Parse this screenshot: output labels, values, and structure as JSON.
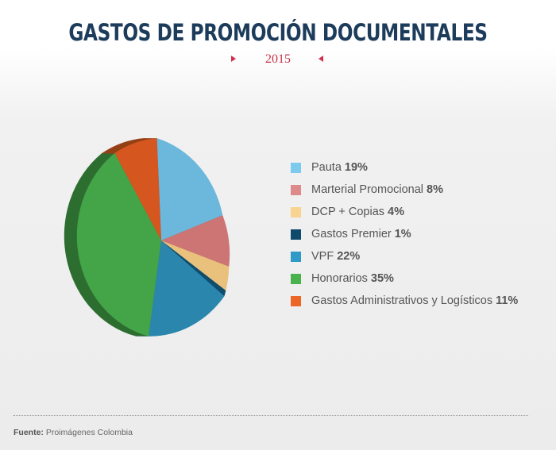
{
  "header": {
    "title": "GASTOS DE PROMOCIÓN DOCUMENTALES",
    "subtitle": "2015"
  },
  "chart_data": {
    "type": "pie",
    "title": "GASTOS DE PROMOCIÓN DOCUMENTALES",
    "subtitle": "2015",
    "legend_position": "right",
    "slices": [
      {
        "label": "Pauta",
        "value_text": "19%",
        "value": 19,
        "color": "#6cb7dc",
        "side": "#3f7f9f"
      },
      {
        "label": "Marterial Promocional",
        "value_text": "8%",
        "value": 8,
        "color": "#cd7475",
        "side": "#8e4a4c"
      },
      {
        "label": "DCP + Copias",
        "value_text": "4%",
        "value": 4,
        "color": "#e9c17c",
        "side": "#a98a55"
      },
      {
        "label": "Gastos Premier",
        "value_text": "1%",
        "value": 1,
        "color": "#104c6c",
        "side": "#0a3550"
      },
      {
        "label": "VPF",
        "value_text": "22%",
        "value": 22,
        "color": "#2a86ad",
        "side": "#1b5a76"
      },
      {
        "label": "Honorarios",
        "value_text": "35%",
        "value": 35,
        "color": "#44a548",
        "side": "#2d6e30"
      },
      {
        "label": "Gastos Administrativos y Logísticos",
        "value_text": "11%",
        "value": 11,
        "color": "#d5561f",
        "side": "#944016"
      }
    ],
    "legend_colors": [
      "#7ccbee",
      "#de8a8a",
      "#f7d48f",
      "#0d4a6c",
      "#2f9ac7",
      "#49b24d",
      "#ec6627"
    ]
  },
  "footer": {
    "source_label": "Fuente:",
    "source_text": "Proimágenes Colombia"
  }
}
